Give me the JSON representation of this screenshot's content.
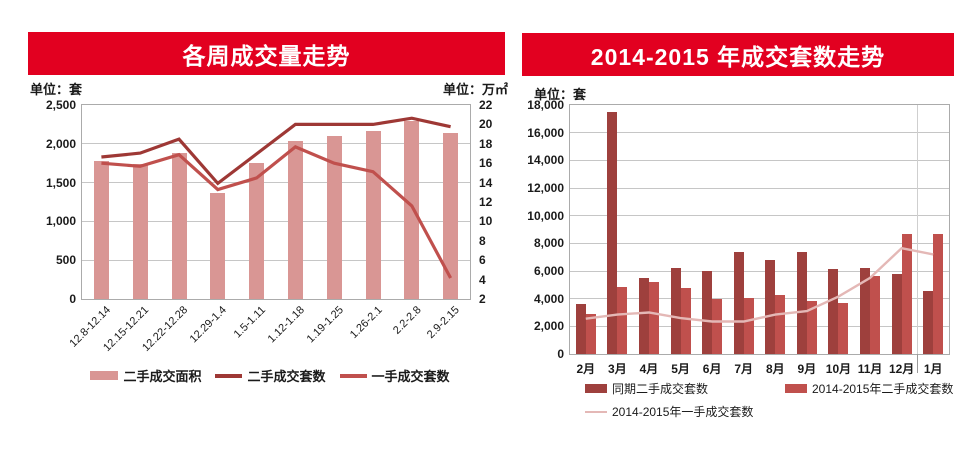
{
  "banner_color": "#E20020",
  "chart_data": [
    {
      "type": "combo-bar-line",
      "title": "各周成交量走势",
      "unit_left": "单位：套",
      "unit_right": "单位：万㎡",
      "categories": [
        "12.8-12.14",
        "12.15-12.21",
        "12.22-12.28",
        "12.29-1.4",
        "1.5-1.11",
        "1.12-1.18",
        "1.19-1.25",
        "1.26-2.1",
        "2.2-2.8",
        "2.9-2.15"
      ],
      "axes": {
        "left": {
          "min": 0,
          "max": 2500,
          "step": 500,
          "labels": [
            "2,500",
            "2,000",
            "1,500",
            "1,000",
            "500",
            "0"
          ]
        },
        "right": {
          "min": 2,
          "max": 22,
          "step": 2,
          "labels": [
            "22",
            "20",
            "18",
            "16",
            "14",
            "12",
            "10",
            "8",
            "6",
            "4",
            "2"
          ]
        }
      },
      "grid": true,
      "legend_position": "bottom",
      "series": [
        {
          "name": "二手成交面积",
          "type": "bar",
          "axis": "right",
          "color": "#D99694",
          "values": [
            16.2,
            15.9,
            17.1,
            12.9,
            16.0,
            18.3,
            18.8,
            19.3,
            20.4,
            19.1
          ]
        },
        {
          "name": "二手成交套数",
          "type": "line",
          "axis": "left",
          "color": "#9E3835",
          "values": [
            1830,
            1880,
            2060,
            1490,
            1870,
            2250,
            2250,
            2250,
            2330,
            2220
          ]
        },
        {
          "name": "一手成交套数",
          "type": "line",
          "axis": "left",
          "color": "#C0504D",
          "values": [
            1750,
            1710,
            1860,
            1410,
            1560,
            1960,
            1750,
            1640,
            1200,
            270
          ]
        }
      ]
    },
    {
      "type": "grouped-bar-line",
      "title": "2014-2015 年成交套数走势",
      "unit_left": "单位：套",
      "categories": [
        "2月",
        "3月",
        "4月",
        "5月",
        "6月",
        "7月",
        "8月",
        "9月",
        "10月",
        "11月",
        "12月",
        "1月"
      ],
      "axes": {
        "left": {
          "min": 0,
          "max": 18000,
          "step": 2000,
          "labels": [
            "18,000",
            "16,000",
            "14,000",
            "12,000",
            "10,000",
            "8,000",
            "6,000",
            "4,000",
            "2,000",
            "0"
          ]
        }
      },
      "grid": true,
      "legend_position": "bottom",
      "year_separator_after": "12月",
      "series": [
        {
          "name": "同期二手成交套数",
          "type": "bar",
          "color": "#9E403D",
          "values": [
            3600,
            17500,
            5500,
            6200,
            6000,
            7400,
            6800,
            7400,
            6150,
            6250,
            5750,
            4550
          ]
        },
        {
          "name": "2014-2015年二手成交套数",
          "type": "bar",
          "color": "#C0504D",
          "values": [
            2900,
            4850,
            5200,
            4750,
            3950,
            4050,
            4250,
            3800,
            3700,
            5650,
            8700,
            8700
          ]
        },
        {
          "name": "2014-2015年一手成交套数",
          "type": "line",
          "color": "#E4B8B6",
          "values": [
            2550,
            2850,
            3000,
            2600,
            2350,
            2350,
            2850,
            3100,
            4150,
            5500,
            7650,
            7200
          ]
        }
      ]
    }
  ]
}
